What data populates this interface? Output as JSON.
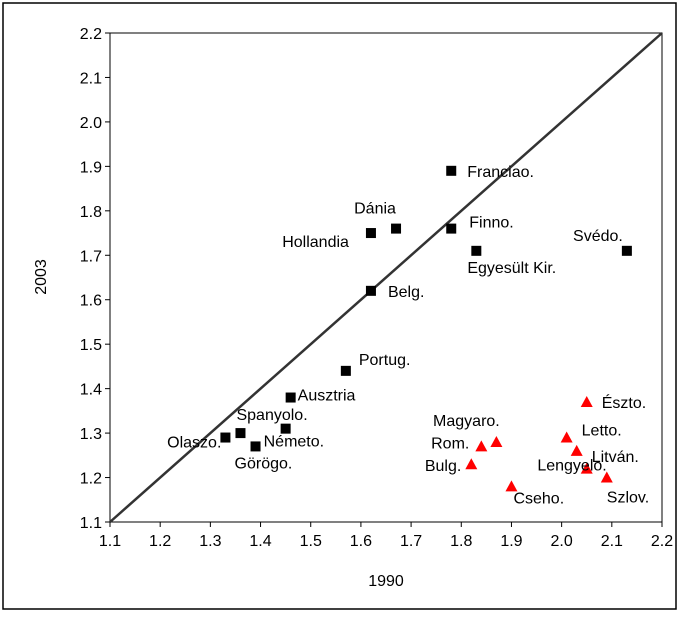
{
  "chart_data": {
    "type": "scatter",
    "xlabel": "1990",
    "ylabel": "2003",
    "xlim": [
      1.1,
      2.2
    ],
    "ylim": [
      1.1,
      2.2
    ],
    "xticks": [
      1.1,
      1.2,
      1.3,
      1.4,
      1.5,
      1.6,
      1.7,
      1.8,
      1.9,
      {
        "value": 2,
        "label": "2.0"
      },
      2.1,
      2.2
    ],
    "yticks": [
      1.1,
      1.2,
      1.3,
      1.4,
      1.5,
      1.6,
      1.7,
      1.8,
      1.9,
      {
        "value": 2,
        "label": "2.0"
      },
      2.1,
      2.2
    ],
    "diagonal": true,
    "series": [
      {
        "color": "#000000",
        "marker": "square",
        "labels": [
          "Franciao.",
          "Dánia",
          "Hollandia",
          "Finno.",
          "Egyesült Kir.",
          "Svédo.",
          "Belg.",
          "Portug.",
          "Ausztria",
          "Spanyolo.",
          "Olaszo.",
          "Görögo.",
          "Németo."
        ],
        "x": [
          1.78,
          1.67,
          1.62,
          1.78,
          1.83,
          2.13,
          1.62,
          1.57,
          1.46,
          1.36,
          1.33,
          1.39,
          1.45
        ],
        "values": [
          1.89,
          1.76,
          1.75,
          1.76,
          1.71,
          1.71,
          1.62,
          1.44,
          1.38,
          1.3,
          1.29,
          1.27,
          1.31
        ]
      },
      {
        "color": "#ff0000",
        "marker": "triangle",
        "labels": [
          "Észto.",
          "Letto.",
          "Litván.",
          "Lengyelo.",
          "Szlov.",
          "Magyaro.",
          "Rom.",
          "Bulg.",
          "Cseho."
        ],
        "x": [
          2.05,
          2.01,
          2.03,
          2.05,
          2.09,
          1.87,
          1.84,
          1.82,
          1.9
        ],
        "values": [
          1.37,
          1.29,
          1.26,
          1.22,
          1.2,
          1.28,
          1.27,
          1.23,
          1.18
        ]
      }
    ]
  }
}
